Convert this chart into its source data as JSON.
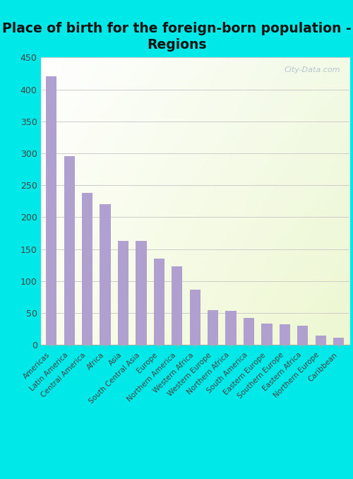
{
  "title": "Place of birth for the foreign-born population -\nRegions",
  "labels": [
    "Americas",
    "Latin America",
    "Central America",
    "Africa",
    "Asia",
    "South Central Asia",
    "Europe",
    "Northern America",
    "Western Africa",
    "Western Europe",
    "Northern Africa",
    "South America",
    "Eastern Europe",
    "Southern Europe",
    "Eastern Africa",
    "Northern Europe",
    "Caribbean"
  ],
  "values": [
    420,
    295,
    238,
    220,
    163,
    163,
    135,
    123,
    86,
    54,
    53,
    42,
    33,
    32,
    30,
    15,
    11
  ],
  "bar_color": "#b0a0d0",
  "bg_outer": "#00e8e8",
  "title_color": "#111111",
  "title_fontsize": 13.5,
  "tick_color": "#444444",
  "ylim": [
    0,
    450
  ],
  "yticks": [
    0,
    50,
    100,
    150,
    200,
    250,
    300,
    350,
    400,
    450
  ],
  "grid_color": "#cccccc",
  "watermark_text": "City-Data.com",
  "watermark_color": "#aabbcc",
  "chart_grad_left": "#f8fff8",
  "chart_grad_right": "#eef8e0"
}
